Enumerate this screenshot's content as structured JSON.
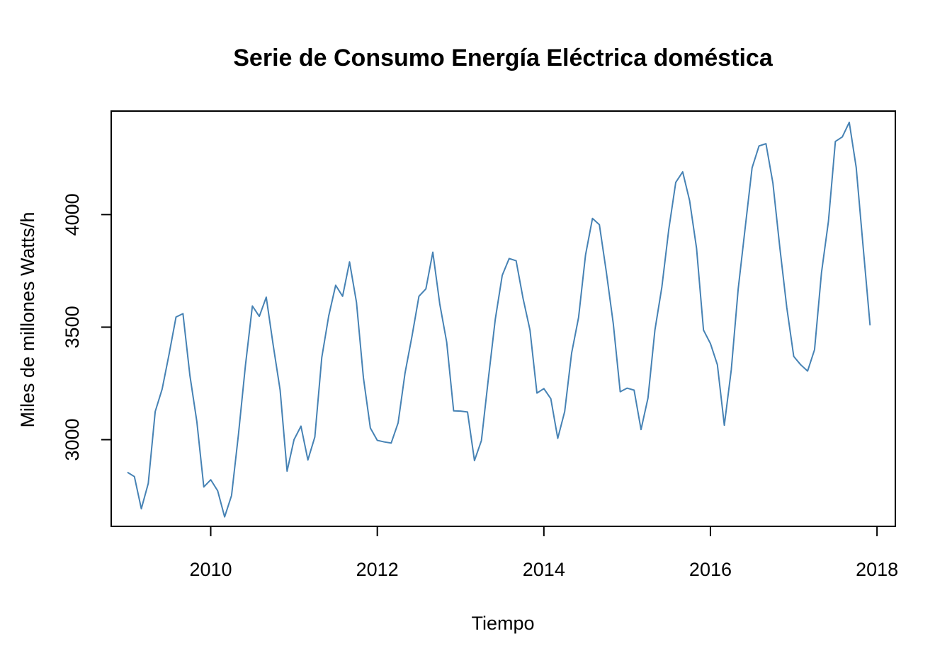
{
  "chart_data": {
    "type": "line",
    "title": "Serie de Consumo Energía Eléctrica doméstica",
    "xlabel": "Tiempo",
    "ylabel": "Miles de millones Watts/h",
    "xlim": [
      2008.805,
      2018.22
    ],
    "ylim": [
      2615,
      4460
    ],
    "x_ticks": [
      2010,
      2012,
      2014,
      2016,
      2018
    ],
    "y_ticks": [
      3000,
      3500,
      4000
    ],
    "grid": false,
    "line_color": "#4682B4",
    "x_start": 2009,
    "frequency": 12,
    "series": [
      {
        "values": [
          2855,
          2836,
          2693,
          2806,
          3125,
          3225,
          3380,
          3545,
          3560,
          3285,
          3080,
          2790,
          2822,
          2773,
          2657,
          2752,
          3025,
          3330,
          3594,
          3548,
          3633,
          3420,
          3220,
          2860,
          3000,
          3060,
          2910,
          3012,
          3365,
          3550,
          3686,
          3637,
          3790,
          3610,
          3275,
          3052,
          2997,
          2990,
          2985,
          3075,
          3297,
          3460,
          3637,
          3670,
          3833,
          3603,
          3433,
          3128,
          3127,
          3123,
          2907,
          2996,
          3270,
          3535,
          3730,
          3805,
          3795,
          3628,
          3487,
          3207,
          3227,
          3182,
          3006,
          3125,
          3385,
          3543,
          3820,
          3983,
          3955,
          3745,
          3516,
          3213,
          3229,
          3220,
          3045,
          3185,
          3487,
          3678,
          3935,
          4143,
          4190,
          4062,
          3850,
          3487,
          3427,
          3333,
          3064,
          3310,
          3670,
          3940,
          4208,
          4305,
          4315,
          4140,
          3853,
          3587,
          3370,
          3333,
          3305,
          3400,
          3742,
          3970,
          4325,
          4345,
          4410,
          4210,
          3857,
          3508
        ]
      }
    ]
  }
}
